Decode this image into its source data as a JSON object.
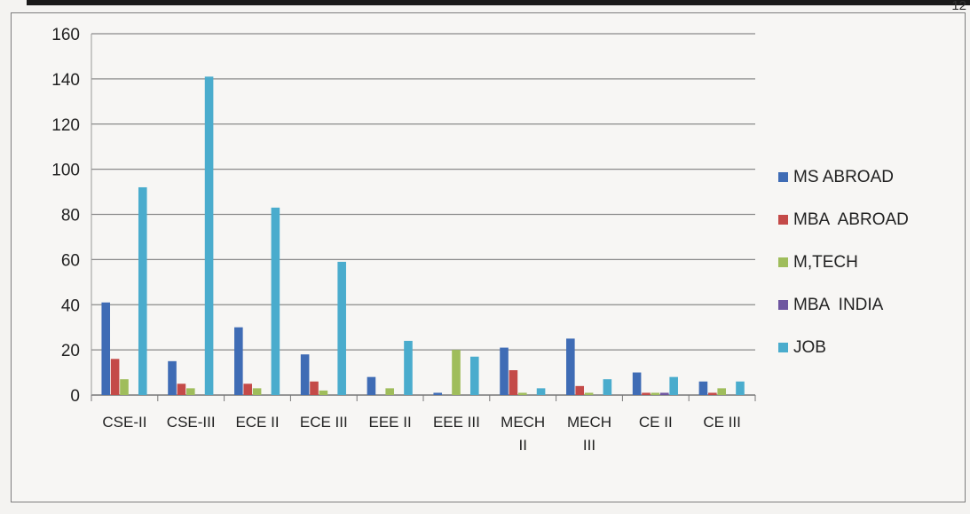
{
  "page": {
    "corner_text": "12"
  },
  "chart_data": {
    "type": "bar",
    "categories": [
      [
        "CSE-II"
      ],
      [
        "CSE-III"
      ],
      [
        "ECE",
        "II"
      ],
      [
        "ECE",
        "III"
      ],
      [
        "EEE",
        "II"
      ],
      [
        "EEE",
        "III"
      ],
      [
        "MECH",
        "II"
      ],
      [
        "MECH",
        "III"
      ],
      [
        "CE",
        "II"
      ],
      [
        "CE",
        "III"
      ]
    ],
    "category_labels": [
      [
        "CSE-II"
      ],
      [
        "CSE-III"
      ],
      [
        "ECE  II"
      ],
      [
        "ECE III"
      ],
      [
        "EEE II"
      ],
      [
        "EEE III"
      ],
      [
        "MECH",
        "II"
      ],
      [
        "MECH",
        "III"
      ],
      [
        "CE II"
      ],
      [
        "CE III"
      ]
    ],
    "series": [
      {
        "name": "MS ABROAD",
        "color": "#3f6cb5",
        "values": [
          41,
          15,
          30,
          18,
          8,
          1,
          21,
          25,
          10,
          6
        ]
      },
      {
        "name": "MBA  ABROAD",
        "color": "#c44a48",
        "values": [
          16,
          5,
          5,
          6,
          0,
          0,
          11,
          4,
          1,
          1
        ]
      },
      {
        "name": "M,TECH",
        "color": "#9fbd5b",
        "values": [
          7,
          3,
          3,
          2,
          3,
          20,
          1,
          1,
          1,
          3
        ]
      },
      {
        "name": "MBA  INDIA",
        "color": "#6e56a0",
        "values": [
          0,
          0,
          0,
          0,
          0,
          0,
          0,
          0,
          1,
          0
        ]
      },
      {
        "name": "JOB",
        "color": "#4aaccd",
        "values": [
          92,
          141,
          83,
          59,
          24,
          17,
          3,
          7,
          8,
          6
        ]
      }
    ],
    "yticks": [
      0,
      20,
      40,
      60,
      80,
      100,
      120,
      140,
      160
    ],
    "ylim": [
      0,
      160
    ],
    "grid": true,
    "legend_position": "right",
    "title": "",
    "xlabel": "",
    "ylabel": ""
  }
}
